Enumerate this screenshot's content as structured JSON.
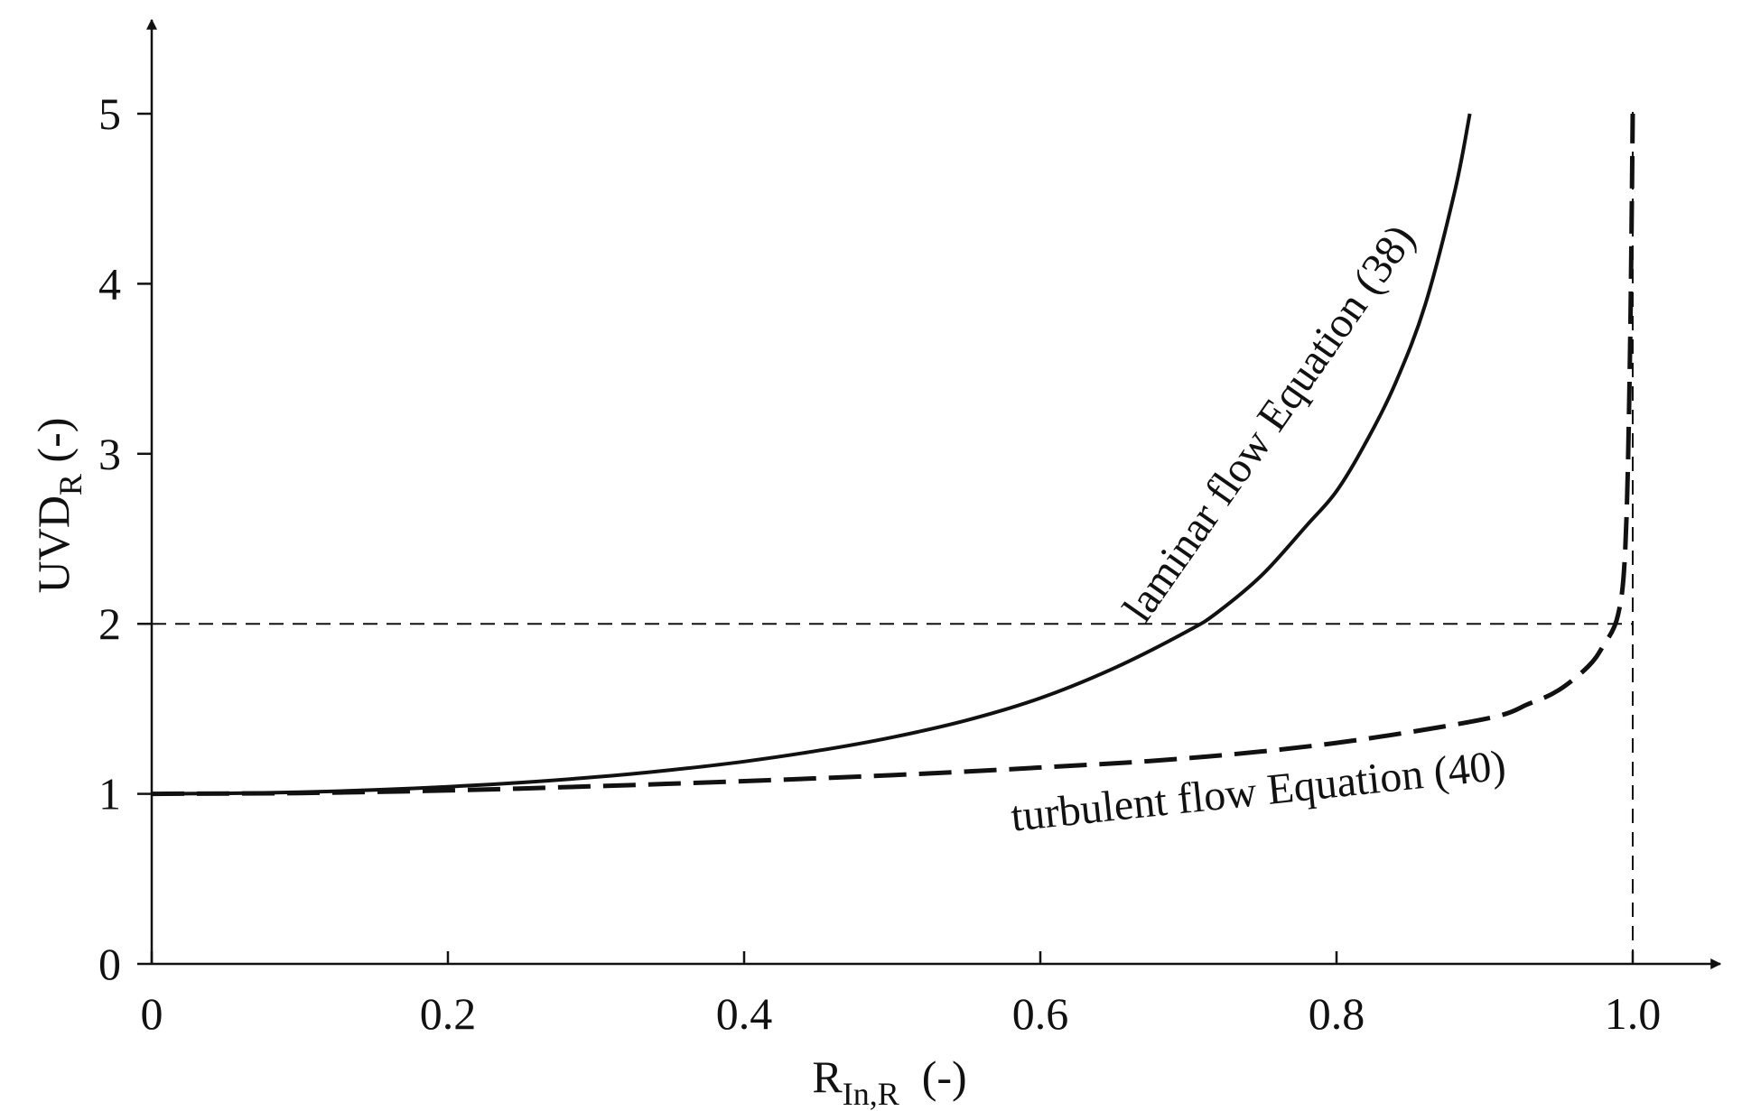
{
  "chart_data": {
    "type": "line",
    "title": "",
    "xlabel": {
      "main": "R",
      "sub": "In,R",
      "suffix": "(-)"
    },
    "ylabel": {
      "main": "UVD",
      "sub": "R",
      "suffix": "(-)"
    },
    "xlim": [
      0,
      1.0
    ],
    "ylim": [
      0,
      5
    ],
    "x_ticks": [
      {
        "value": 0,
        "label": "0"
      },
      {
        "value": 0.2,
        "label": "0.2"
      },
      {
        "value": 0.4,
        "label": "0.4"
      },
      {
        "value": 0.6,
        "label": "0.6"
      },
      {
        "value": 0.8,
        "label": "0.8"
      },
      {
        "value": 1.0,
        "label": "1.0"
      }
    ],
    "y_ticks": [
      {
        "value": 0,
        "label": "0"
      },
      {
        "value": 1,
        "label": "1"
      },
      {
        "value": 2,
        "label": "2"
      },
      {
        "value": 3,
        "label": "3"
      },
      {
        "value": 4,
        "label": "4"
      },
      {
        "value": 5,
        "label": "5"
      }
    ],
    "grid": false,
    "reference_lines": [
      {
        "orientation": "horizontal",
        "value": 2,
        "from": 0,
        "to": 1.0,
        "style": "dashed"
      },
      {
        "orientation": "vertical",
        "value": 1.0,
        "from": 0,
        "to": 5,
        "style": "dashed"
      }
    ],
    "series": [
      {
        "name": "laminar flow Equation (38)",
        "style": "solid",
        "x": [
          0,
          0.05,
          0.1,
          0.15,
          0.2,
          0.25,
          0.3,
          0.35,
          0.4,
          0.45,
          0.5,
          0.55,
          0.6,
          0.65,
          0.7,
          0.72,
          0.75,
          0.78,
          0.8,
          0.82,
          0.84,
          0.86,
          0.88,
          0.89
        ],
        "y": [
          1.0,
          1.003,
          1.01,
          1.023,
          1.042,
          1.067,
          1.099,
          1.14,
          1.19,
          1.254,
          1.333,
          1.432,
          1.563,
          1.74,
          1.96,
          2.07,
          2.29,
          2.58,
          2.78,
          3.07,
          3.42,
          3.88,
          4.55,
          5.0
        ]
      },
      {
        "name": "turbulent flow Equation (40)",
        "style": "dashed",
        "x": [
          0,
          0.1,
          0.2,
          0.3,
          0.4,
          0.5,
          0.6,
          0.7,
          0.8,
          0.9,
          0.93,
          0.95,
          0.97,
          0.98,
          0.99,
          0.995,
          0.998,
          1.0
        ],
        "y": [
          1.0,
          1.005,
          1.02,
          1.045,
          1.075,
          1.11,
          1.155,
          1.21,
          1.3,
          1.44,
          1.53,
          1.61,
          1.75,
          1.87,
          2.05,
          2.45,
          3.5,
          5.0
        ]
      }
    ]
  }
}
